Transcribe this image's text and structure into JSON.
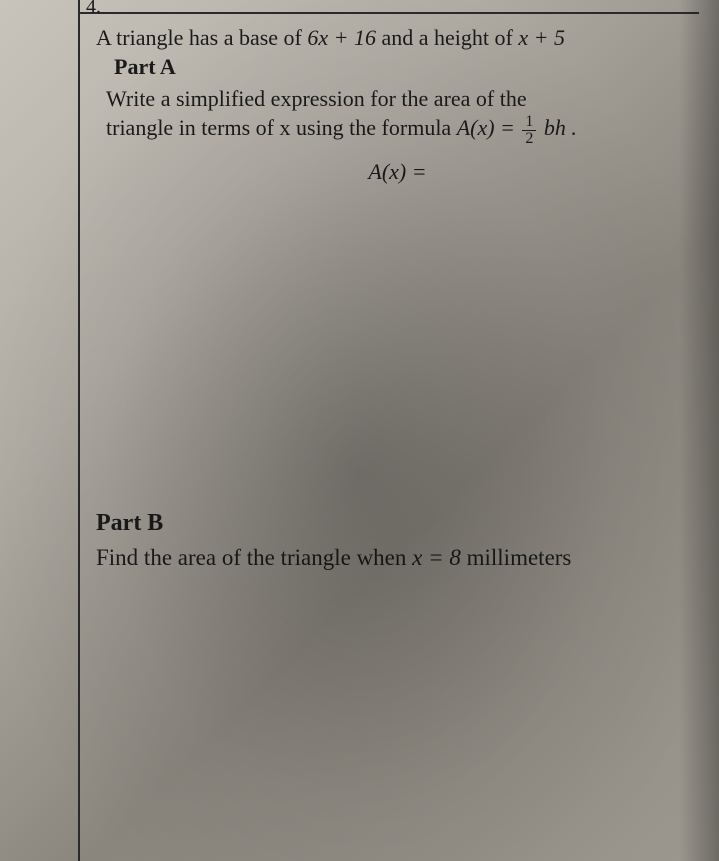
{
  "problem_number": "4.",
  "intro_prefix": "A triangle has a base of ",
  "base_expr": "6x + 16",
  "intro_mid": " and a height of ",
  "height_expr": "x + 5",
  "partA": {
    "label": "Part A",
    "line1": "Write a simplified expression for the area of the",
    "line2_prefix": "triangle in terms of x using the formula ",
    "formula_lhs": "A(x) = ",
    "frac_num": "1",
    "frac_den": "2",
    "formula_rhs": " bh .",
    "answer_prompt": "A(x)  ="
  },
  "partB": {
    "label": "Part B",
    "body_prefix": "Find the area of the triangle when ",
    "x_expr": "x = 8",
    "body_suffix": " millimeters"
  },
  "style": {
    "text_color": "#1a1a1a",
    "rule_color": "#2a2a2a",
    "body_fontsize": 22,
    "label_fontsize": 22,
    "partB_fontsize": 23
  }
}
